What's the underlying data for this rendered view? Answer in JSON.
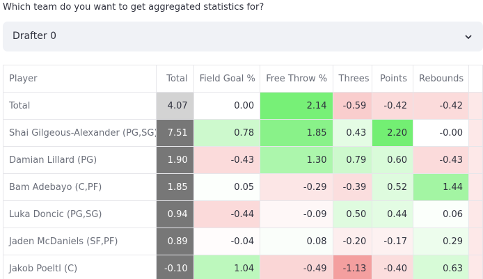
{
  "prompt": "Which team do you want to get aggregated statistics for?",
  "select": {
    "value": "Drafter 0"
  },
  "table": {
    "columns": [
      "Player",
      "Total",
      "Field Goal %",
      "Free Throw %",
      "Threes",
      "Points",
      "Rebounds"
    ],
    "rows": [
      [
        "Total",
        "4.07",
        "0.00",
        "2.14",
        "-0.59",
        "-0.42",
        "-0.42"
      ],
      [
        "Shai Gilgeous-Alexander (PG,SG)",
        "7.51",
        "0.78",
        "1.85",
        "0.43",
        "2.20",
        "-0.00"
      ],
      [
        "Damian Lillard (PG)",
        "1.90",
        "-0.43",
        "1.30",
        "0.79",
        "0.60",
        "-0.43"
      ],
      [
        "Bam Adebayo (C,PF)",
        "1.85",
        "0.05",
        "-0.29",
        "-0.39",
        "0.52",
        "1.44"
      ],
      [
        "Luka Doncic (PG,SG)",
        "0.94",
        "-0.44",
        "-0.09",
        "0.50",
        "0.44",
        "0.06"
      ],
      [
        "Jaden McDaniels (SF,PF)",
        "0.89",
        "-0.04",
        "0.08",
        "-0.20",
        "-0.17",
        "0.29"
      ],
      [
        "Jakob Poeltl (C)",
        "-0.10",
        "1.04",
        "-0.49",
        "-1.13",
        "-0.40",
        "0.63"
      ]
    ]
  }
}
